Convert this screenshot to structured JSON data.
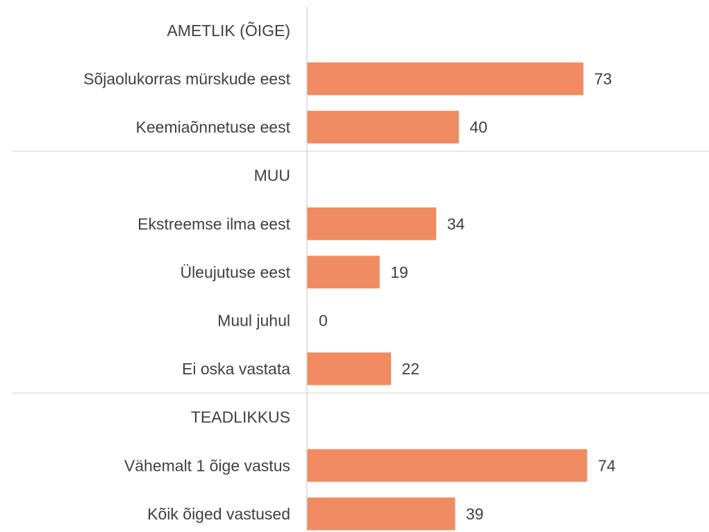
{
  "chart_data": {
    "type": "bar",
    "orientation": "horizontal",
    "categories": [
      "AMETLIK (ÕIGE)",
      "Sõjaolukorras mürskude eest",
      "Keemiaõnnetuse eest",
      "MUU",
      "Ekstreemse ilma eest",
      "Üleujutuse eest",
      "Muul juhul",
      "Ei oska vastata",
      "TEADLIKKUS",
      "Vähemalt 1 õige vastus",
      "Kõik õiged vastused"
    ],
    "values": [
      null,
      73,
      40,
      null,
      34,
      19,
      0,
      22,
      null,
      74,
      39
    ],
    "color": "#f08b62"
  }
}
